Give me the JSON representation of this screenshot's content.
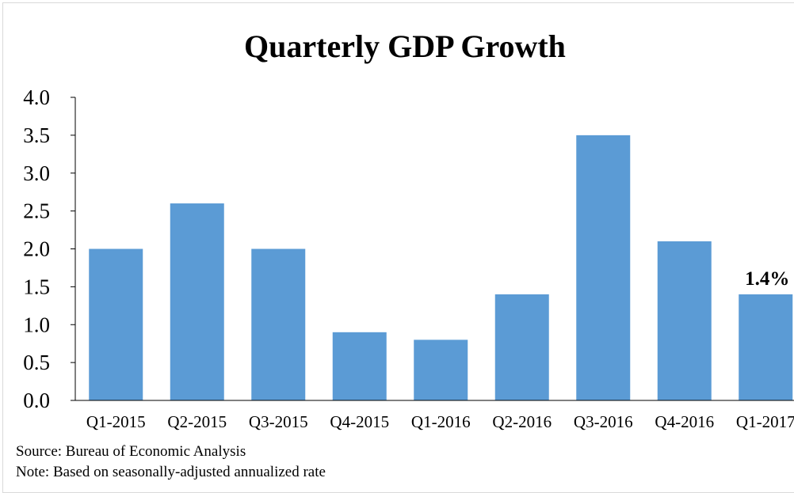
{
  "chart_data": {
    "type": "bar",
    "title": "Quarterly GDP Growth",
    "xlabel": "",
    "ylabel": "",
    "categories": [
      "Q1-2015",
      "Q2-2015",
      "Q3-2015",
      "Q4-2015",
      "Q1-2016",
      "Q2-2016",
      "Q3-2016",
      "Q4-2016",
      "Q1-2017"
    ],
    "values": [
      2.0,
      2.6,
      2.0,
      0.9,
      0.8,
      1.4,
      3.5,
      2.1,
      1.4
    ],
    "ylim": [
      0,
      4.0
    ],
    "yticks": [
      "0.0",
      "0.5",
      "1.0",
      "1.5",
      "2.0",
      "2.5",
      "3.0",
      "3.5",
      "4.0"
    ],
    "data_labels": [
      {
        "category": "Q1-2017",
        "text": "1.4%"
      }
    ],
    "bar_color": "#5b9bd5",
    "grid": false,
    "legend": "none"
  },
  "notes": {
    "source": "Source: Bureau of Economic Analysis",
    "basis": "Note: Based on seasonally-adjusted annualized rate"
  }
}
